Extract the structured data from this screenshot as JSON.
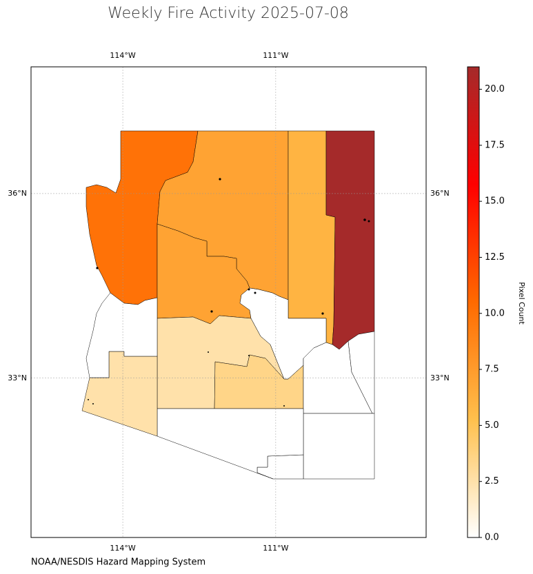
{
  "chart_data": {
    "type": "choropleth",
    "title": "Weekly Fire Activity 2025-07-08",
    "values": [
      10,
      7,
      6,
      21,
      7,
      2.5,
      3.5,
      0,
      0,
      0,
      0,
      0,
      0,
      2.5,
      0
    ],
    "xlim": [
      -115.8,
      -108.05
    ],
    "ylim": [
      30.41,
      38.06
    ],
    "xticks": [
      {
        "value": -114,
        "label": "114°W"
      },
      {
        "value": -111,
        "label": "111°W"
      }
    ],
    "yticks": [
      {
        "value": 33,
        "label": "33°N"
      },
      {
        "value": 36,
        "label": "36°N"
      }
    ],
    "grid": true,
    "colorbar": {
      "label": "Pixel Count",
      "lim": [
        0,
        21
      ],
      "colormap": [
        "#ffffff",
        "#ffc04d",
        "#ff6a00",
        "#ff0000",
        "#a52a2a"
      ],
      "ticks": [
        {
          "value": 0,
          "label": "0.0"
        },
        {
          "value": 2.5,
          "label": "2.5"
        },
        {
          "value": 5,
          "label": "5.0"
        },
        {
          "value": 7.5,
          "label": "7.5"
        },
        {
          "value": 10,
          "label": "10.0"
        },
        {
          "value": 12.5,
          "label": "12.5"
        },
        {
          "value": 15,
          "label": "15.0"
        },
        {
          "value": 17.5,
          "label": "17.5"
        },
        {
          "value": 20,
          "label": "20.0"
        }
      ]
    },
    "source": "NOAA/NESDIS Hazard Mapping System"
  }
}
